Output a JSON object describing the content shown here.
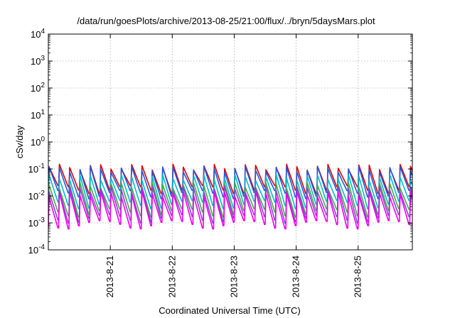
{
  "chart_data": {
    "type": "line",
    "title": "/data/run/goesPlots/archive/2013-08-25/21:00/flux/../bryn/5daysMars.plot",
    "xlabel": "Coordinated Universal Time (UTC)",
    "ylabel": "cSv/day",
    "yscale": "log",
    "ylim": [
      0.0001,
      10000
    ],
    "y_ticks": [
      {
        "value": 0.0001,
        "base": "10",
        "exp": "-4"
      },
      {
        "value": 0.001,
        "base": "10",
        "exp": "-3"
      },
      {
        "value": 0.01,
        "base": "10",
        "exp": "-2"
      },
      {
        "value": 0.1,
        "base": "10",
        "exp": "-1"
      },
      {
        "value": 1,
        "base": "10",
        "exp": "0"
      },
      {
        "value": 10,
        "base": "10",
        "exp": "1"
      },
      {
        "value": 100,
        "base": "10",
        "exp": "2"
      },
      {
        "value": 1000,
        "base": "10",
        "exp": "3"
      },
      {
        "value": 10000,
        "base": "10",
        "exp": "4"
      }
    ],
    "xlim": [
      "2013-08-20 00:00",
      "2013-08-25 21:00"
    ],
    "x_ticks": [
      "2013-8-21",
      "2013-8-22",
      "2013-8-23",
      "2013-8-24",
      "2013-8-25"
    ],
    "grid": true,
    "sawtooth_period_hours": 4,
    "series": [
      {
        "color": "#dd0000",
        "peak": 0.12,
        "trough": 0.018
      },
      {
        "color": "#2255dd",
        "peak": 0.1,
        "trough": 0.012
      },
      {
        "color": "#00bbcc",
        "peak": 0.05,
        "trough": 0.005
      },
      {
        "color": "#44aa44",
        "peak": 0.025,
        "trough": 0.0025
      },
      {
        "color": "#8844cc",
        "peak": 0.018,
        "trough": 0.0015
      },
      {
        "color": "#ee00ee",
        "peak": 0.012,
        "trough": 0.0009
      }
    ]
  }
}
